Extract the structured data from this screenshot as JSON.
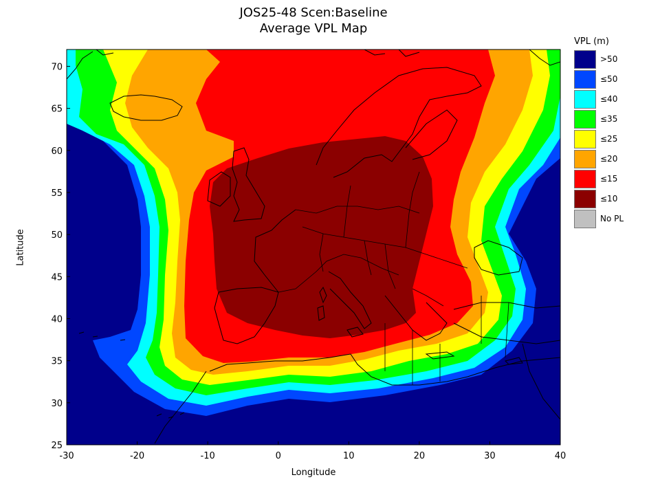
{
  "title_line1": "JOS25-48 Scen:Baseline",
  "title_line2": "Average VPL Map",
  "xlabel": "Longitude",
  "ylabel": "Latitude",
  "x_ticks": [
    "-30",
    "-20",
    "-10",
    "0",
    "10",
    "20",
    "30",
    "40"
  ],
  "y_ticks": [
    "70",
    "65",
    "60",
    "55",
    "50",
    "45",
    "40",
    "35",
    "30",
    "25"
  ],
  "legend": {
    "title": "VPL (m)",
    "items": [
      {
        "label": ">50",
        "color": "#00008b"
      },
      {
        "label": "≤50",
        "color": "#0047ff"
      },
      {
        "label": "≤40",
        "color": "#00ffff"
      },
      {
        "label": "≤35",
        "color": "#00ff00"
      },
      {
        "label": "≤25",
        "color": "#ffff00"
      },
      {
        "label": "≤20",
        "color": "#ffa500"
      },
      {
        "label": "≤15",
        "color": "#ff0000"
      },
      {
        "label": "≤10",
        "color": "#8b0000"
      },
      {
        "label": "No PL",
        "color": "#c0c0c0"
      }
    ]
  },
  "chart_data": {
    "type": "heatmap",
    "xlim": [
      -30,
      40
    ],
    "ylim": [
      25,
      72
    ],
    "colormap": "VPL (m) bins",
    "grid": false,
    "legend_position": "right"
  }
}
